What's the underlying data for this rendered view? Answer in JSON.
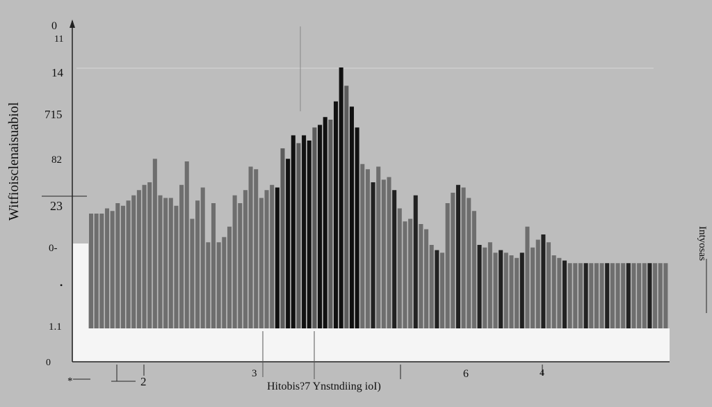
{
  "chart_data": {
    "type": "bar",
    "title": "",
    "xlabel": "Hitobis?7 Ynstndiing ioI)",
    "ylabel": "Witfioisclenaisuabiol",
    "right_label": "Intyosas",
    "y_ticks": [
      "0",
      "11",
      "14",
      "715",
      "82",
      "23",
      "0-",
      "1.1",
      "0"
    ],
    "x_ticks": [
      "2",
      "3",
      "6",
      "4"
    ],
    "corner_marks": [
      "*",
      "•"
    ],
    "bar_colors": [
      "#6e6e6e",
      "#111111",
      "#222222",
      "#5c5c5c"
    ],
    "values": [
      8.8,
      8.8,
      8.8,
      9.2,
      9.0,
      9.6,
      9.4,
      9.8,
      10.2,
      10.6,
      11.0,
      11.2,
      13.0,
      10.2,
      10.0,
      10.0,
      9.4,
      11.0,
      12.8,
      8.4,
      9.8,
      10.8,
      6.6,
      9.6,
      6.6,
      7.0,
      7.8,
      10.2,
      9.6,
      10.6,
      12.4,
      12.2,
      10.0,
      10.6,
      11.0,
      10.8,
      13.8,
      13.0,
      14.8,
      14.2,
      14.8,
      14.4,
      15.4,
      15.6,
      16.2,
      16.0,
      17.4,
      20.0,
      18.6,
      17.0,
      15.4,
      12.6,
      12.2,
      11.2,
      12.4,
      11.4,
      11.6,
      10.6,
      9.2,
      8.2,
      8.4,
      10.2,
      8.0,
      7.6,
      6.4,
      6.0,
      5.8,
      9.6,
      10.4,
      11.0,
      10.8,
      10.0,
      9.0,
      6.4,
      6.2,
      6.6,
      5.8,
      6.0,
      5.8,
      5.6,
      5.4,
      5.8,
      7.8,
      6.2,
      6.8,
      7.2,
      6.6,
      5.6,
      5.4,
      5.2,
      5.0,
      5.0,
      5.0,
      5.0,
      5.0,
      5.0,
      5.0,
      5.0,
      5.0,
      5.0,
      5.0,
      5.0,
      5.0,
      5.0,
      5.0,
      5.0,
      5.0,
      5.0,
      5.0
    ]
  }
}
